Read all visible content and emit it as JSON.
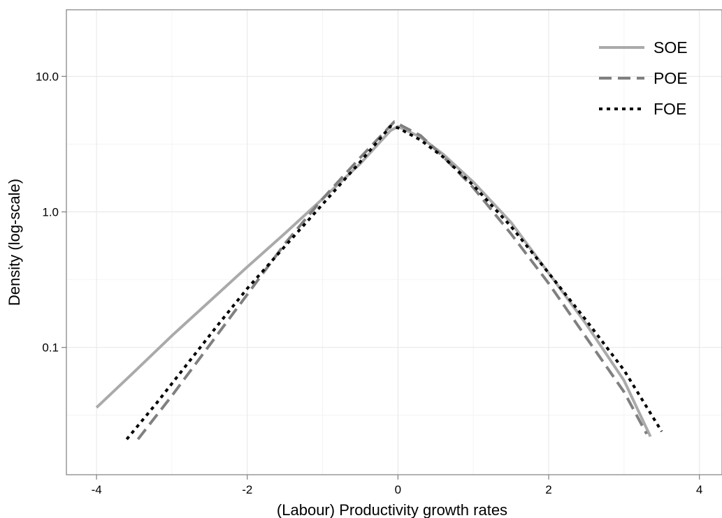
{
  "chart_data": {
    "type": "line",
    "title": "",
    "xlabel": "(Labour) Productivity growth rates",
    "ylabel": "Density (log-scale)",
    "xlim": [
      -4.4,
      4.3
    ],
    "ylim": [
      0.0115,
      31
    ],
    "yscale": "log",
    "grid": true,
    "legend_position": "top-right",
    "x_ticks": [
      {
        "value": -4,
        "label": "-4"
      },
      {
        "value": -2,
        "label": "-2"
      },
      {
        "value": 0,
        "label": "0"
      },
      {
        "value": 2,
        "label": "2"
      },
      {
        "value": 4,
        "label": "4"
      }
    ],
    "y_ticks": [
      {
        "value": 0.1,
        "label": "0.1"
      },
      {
        "value": 1,
        "label": "1.0"
      },
      {
        "value": 10,
        "label": "10.0"
      }
    ],
    "series": [
      {
        "name": "SOE",
        "color": "#aaaaaa",
        "dash": "solid",
        "points": [
          [
            -4.0,
            0.036
          ],
          [
            -3.5,
            0.066
          ],
          [
            -3.0,
            0.122
          ],
          [
            -2.5,
            0.219
          ],
          [
            -2.0,
            0.393
          ],
          [
            -1.5,
            0.695
          ],
          [
            -1.0,
            1.25
          ],
          [
            -0.5,
            2.27
          ],
          [
            -0.1,
            3.98
          ],
          [
            0.0,
            4.27
          ],
          [
            0.3,
            3.56
          ],
          [
            0.6,
            2.66
          ],
          [
            1.0,
            1.66
          ],
          [
            1.5,
            0.837
          ],
          [
            2.0,
            0.354
          ],
          [
            2.5,
            0.148
          ],
          [
            3.0,
            0.057
          ],
          [
            3.35,
            0.022
          ]
        ]
      },
      {
        "name": "POE",
        "color": "#808080",
        "dash": "dashed",
        "points": [
          [
            -3.45,
            0.021
          ],
          [
            -3.0,
            0.044
          ],
          [
            -2.5,
            0.104
          ],
          [
            -2.0,
            0.246
          ],
          [
            -1.5,
            0.584
          ],
          [
            -1.0,
            1.25
          ],
          [
            -0.5,
            2.52
          ],
          [
            -0.05,
            4.62
          ],
          [
            0.3,
            3.66
          ],
          [
            0.6,
            2.56
          ],
          [
            1.0,
            1.51
          ],
          [
            1.5,
            0.689
          ],
          [
            2.0,
            0.297
          ],
          [
            2.5,
            0.118
          ],
          [
            3.0,
            0.047
          ],
          [
            3.3,
            0.023
          ]
        ]
      },
      {
        "name": "FOE",
        "color": "#000000",
        "dash": "dotted",
        "points": [
          [
            -3.6,
            0.021
          ],
          [
            -3.2,
            0.039
          ],
          [
            -2.8,
            0.075
          ],
          [
            -2.4,
            0.144
          ],
          [
            -2.0,
            0.272
          ],
          [
            -1.5,
            0.558
          ],
          [
            -1.0,
            1.14
          ],
          [
            -0.5,
            2.34
          ],
          [
            -0.1,
            4.27
          ],
          [
            0.0,
            4.17
          ],
          [
            0.3,
            3.39
          ],
          [
            0.6,
            2.54
          ],
          [
            1.0,
            1.57
          ],
          [
            1.5,
            0.782
          ],
          [
            2.0,
            0.354
          ],
          [
            2.5,
            0.158
          ],
          [
            3.0,
            0.068
          ],
          [
            3.5,
            0.024
          ]
        ]
      }
    ]
  }
}
